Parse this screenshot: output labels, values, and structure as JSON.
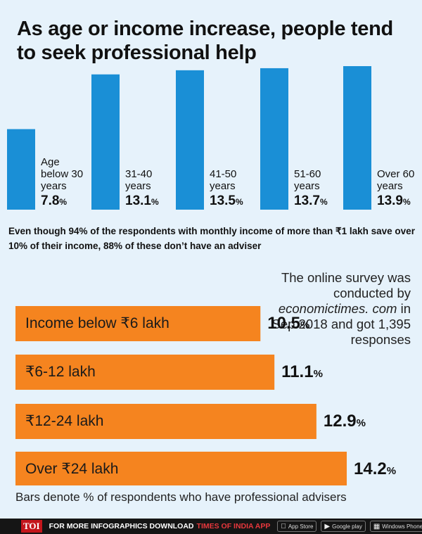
{
  "title": "As age or income increase, people tend to seek professional help",
  "note": "Even though 94% of the respondents with monthly income of more than ₹1 lakh save over 10% of their income, 88% of these don’t have an adviser",
  "survey": {
    "line1": "The online survey was conducted by",
    "site": "economictimes. com",
    "line2": "in Sep 2018 and got 1,395 responses"
  },
  "footnote": "Bars denote % of respondents who have professional advisers",
  "footer": {
    "logo": "TOI",
    "text": "FOR MORE  INFOGRAPHICS DOWNLOAD",
    "app": "TIMES OF INDIA APP",
    "stores": [
      "App Store",
      "Google play",
      "Windows Phone"
    ]
  },
  "colors": {
    "age_bar": "#1a8fd6",
    "income_bar": "#f5841f",
    "background": "#e6f2fb"
  },
  "chart_data": [
    {
      "type": "bar",
      "orientation": "vertical",
      "categories": [
        "Age below 30 years",
        "31-40 years",
        "41-50 years",
        "51-60 years",
        "Over 60 years"
      ],
      "values": [
        7.8,
        13.1,
        13.5,
        13.7,
        13.9
      ],
      "value_labels": [
        "7.8",
        "13.1",
        "13.5",
        "13.7",
        "13.9"
      ],
      "unit": "%",
      "ylim": [
        0,
        13.9
      ]
    },
    {
      "type": "bar",
      "orientation": "horizontal",
      "categories": [
        "Income below ₹6 lakh",
        "₹6-12 lakh",
        "₹12-24 lakh",
        "Over ₹24 lakh"
      ],
      "values": [
        10.5,
        11.1,
        12.9,
        14.2
      ],
      "value_labels": [
        "10.5",
        "11.1",
        "12.9",
        "14.2"
      ],
      "unit": "%"
    }
  ]
}
